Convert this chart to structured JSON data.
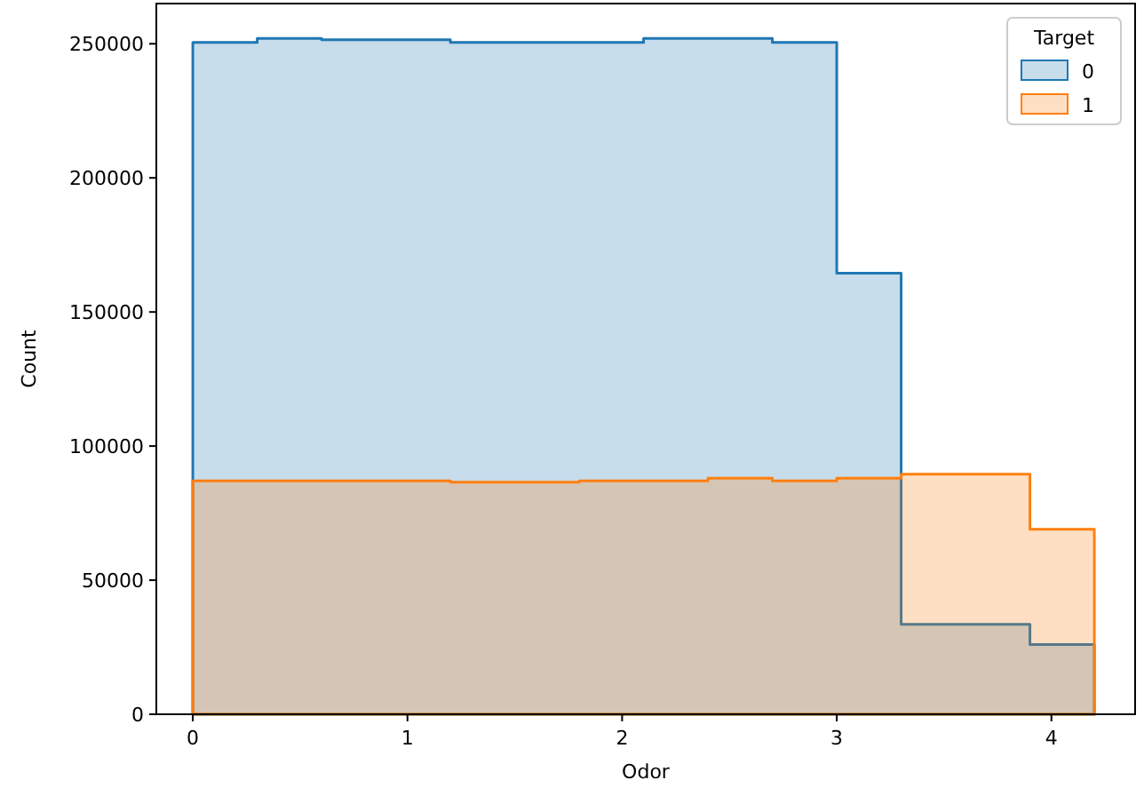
{
  "chart_data": {
    "type": "histogram",
    "xlabel": "Odor",
    "ylabel": "Count",
    "legend_title": "Target",
    "legend": "top right",
    "bins": [
      0,
      0.3,
      0.6,
      0.9,
      1.2,
      1.5,
      1.8,
      2.1,
      2.4,
      2.7,
      3.0,
      3.3,
      3.6,
      3.9,
      4.2
    ],
    "series": [
      {
        "name": "0",
        "color": "#1f77b4",
        "values": [
          250500,
          252000,
          251500,
          251500,
          250500,
          250500,
          250500,
          252000,
          252000,
          250500,
          164500,
          33500,
          33500,
          26000
        ]
      },
      {
        "name": "1",
        "color": "#ff7f0e",
        "values": [
          87000,
          87000,
          87000,
          87000,
          86500,
          86500,
          87000,
          87000,
          88000,
          87000,
          88000,
          89500,
          89500,
          69000
        ]
      }
    ],
    "xlim": [
      -0.17,
      4.39
    ],
    "ylim": [
      0,
      265000
    ],
    "xticks": [
      0,
      1,
      2,
      3,
      4
    ],
    "yticks": [
      0,
      50000,
      100000,
      150000,
      200000,
      250000
    ]
  }
}
